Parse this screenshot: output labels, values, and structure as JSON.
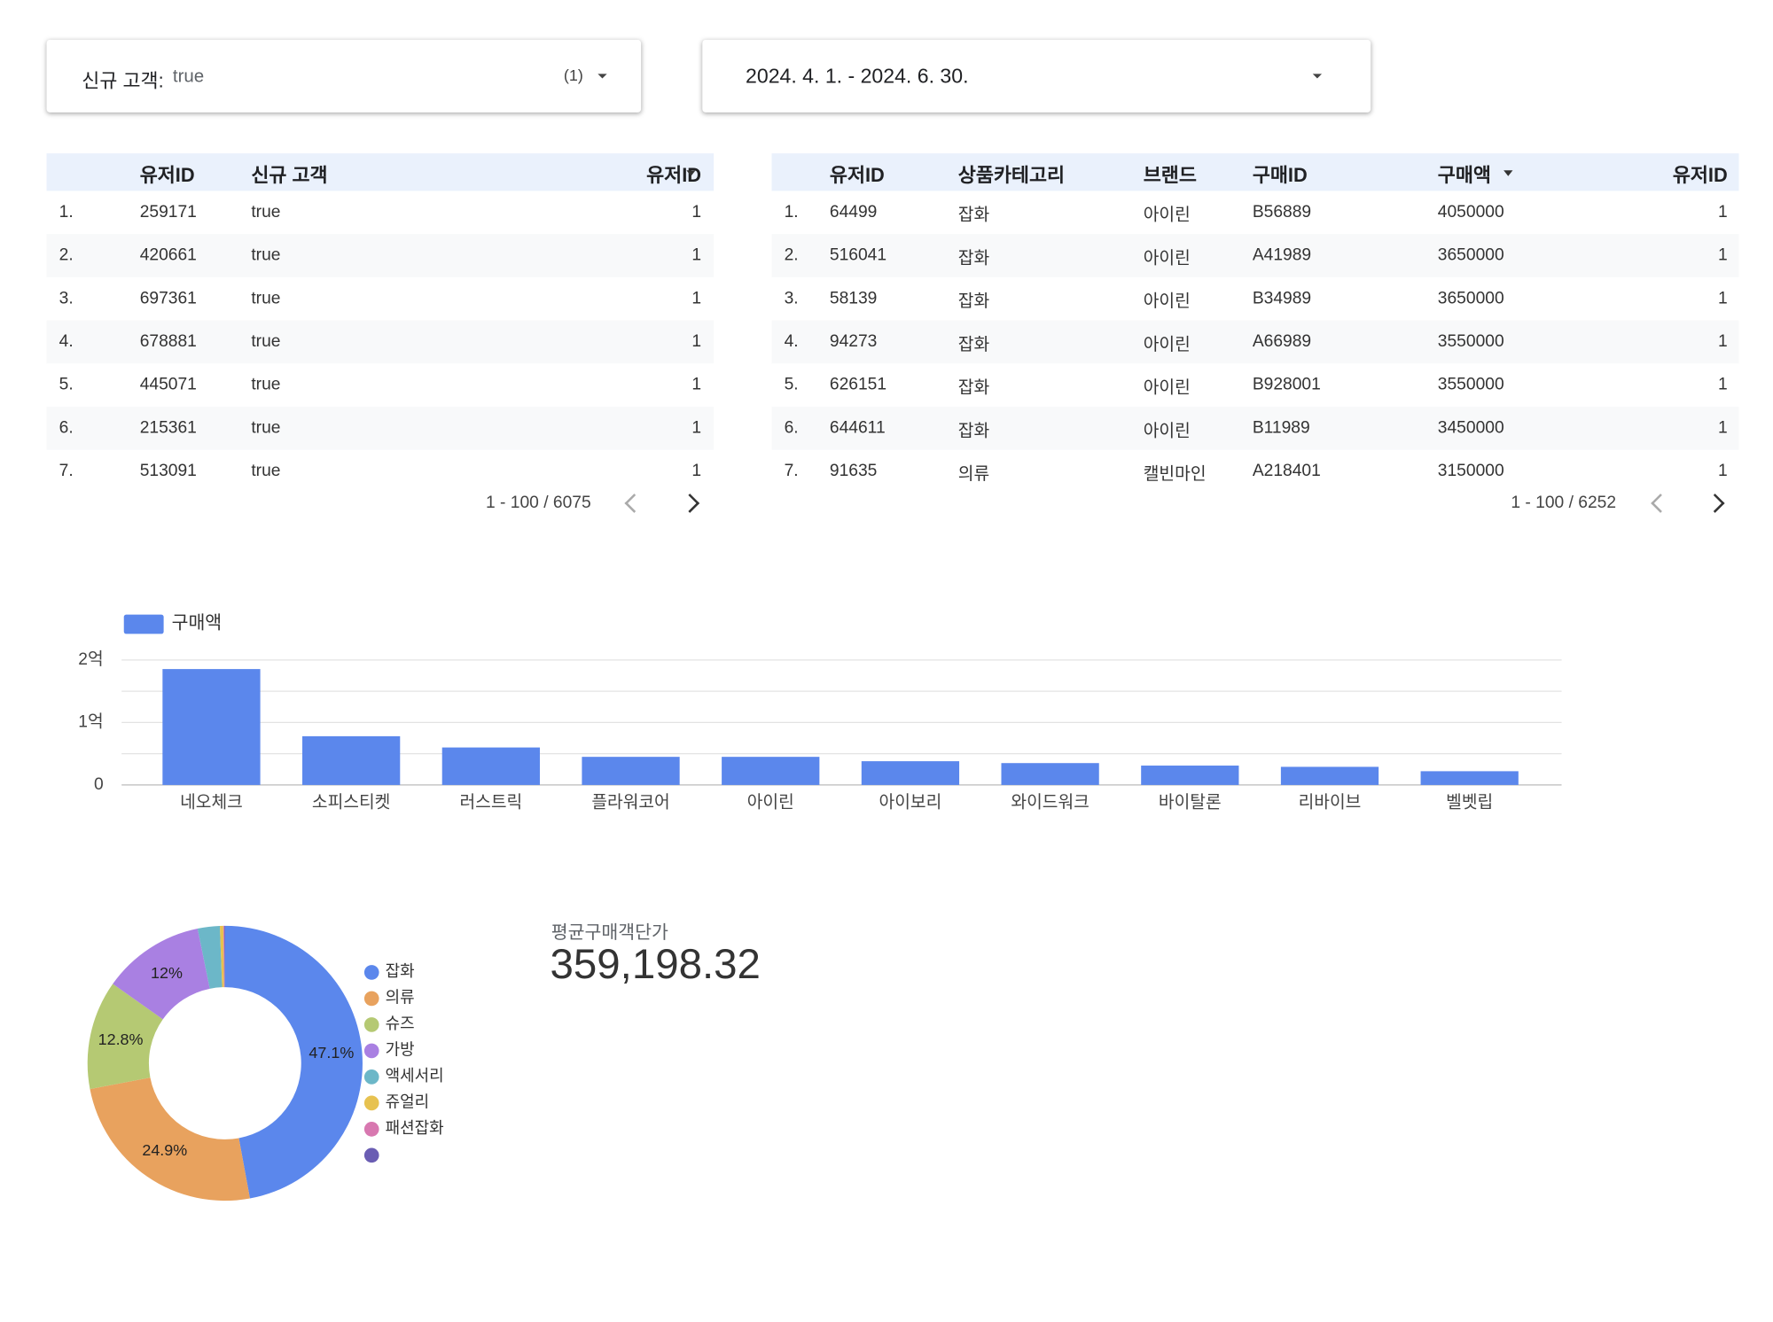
{
  "filters": [
    {
      "label": "신규 고객:",
      "value": "true",
      "count": "(1)"
    },
    {
      "label": "2024. 4. 1. - 2024. 6. 30."
    }
  ],
  "tables": [
    {
      "headers": [
        "유저ID",
        "신규 고객",
        "유저ID"
      ],
      "rows": [
        [
          "1.",
          "259171",
          "true",
          "1"
        ],
        [
          "2.",
          "420661",
          "true",
          "1"
        ],
        [
          "3.",
          "697361",
          "true",
          "1"
        ],
        [
          "4.",
          "678881",
          "true",
          "1"
        ],
        [
          "5.",
          "445071",
          "true",
          "1"
        ],
        [
          "6.",
          "215361",
          "true",
          "1"
        ],
        [
          "7.",
          "513091",
          "true",
          "1"
        ]
      ],
      "pagination": "1 - 100 / 6075"
    },
    {
      "headers": [
        "유저ID",
        "상품카테고리",
        "브랜드",
        "구매ID",
        "구매액",
        "유저ID"
      ],
      "rows": [
        [
          "1.",
          "64499",
          "잡화",
          "아이린",
          "B56889",
          "4050000",
          "1"
        ],
        [
          "2.",
          "516041",
          "잡화",
          "아이린",
          "A41989",
          "3650000",
          "1"
        ],
        [
          "3.",
          "58139",
          "잡화",
          "아이린",
          "B34989",
          "3650000",
          "1"
        ],
        [
          "4.",
          "94273",
          "잡화",
          "아이린",
          "A66989",
          "3550000",
          "1"
        ],
        [
          "5.",
          "626151",
          "잡화",
          "아이린",
          "B928001",
          "3550000",
          "1"
        ],
        [
          "6.",
          "644611",
          "잡화",
          "아이린",
          "B11989",
          "3450000",
          "1"
        ],
        [
          "7.",
          "91635",
          "의류",
          "캘빈마인",
          "A218401",
          "3150000",
          "1"
        ]
      ],
      "pagination": "1 - 100 / 6252"
    }
  ],
  "chart_data": [
    {
      "type": "bar",
      "categories": [
        "네오체크",
        "소피스티켓",
        "러스트릭",
        "플라워코어",
        "아이린",
        "아이보리",
        "와이드워크",
        "바이탈론",
        "리바이브",
        "벨벳립"
      ],
      "series": [
        {
          "name": "구매액",
          "color": "#5b87ec",
          "values": [
            185500000,
            78000000,
            60000000,
            45000000,
            45000000,
            38000000,
            35000000,
            31000000,
            29000000,
            22000000
          ]
        }
      ],
      "ylim": [
        0,
        200000000
      ],
      "yticks": [
        0,
        {
          "value": 100000000,
          "label": "1억"
        },
        {
          "value": 200000000,
          "label": "2억"
        }
      ],
      "minor_gridlines": [
        50000000,
        150000000
      ],
      "grid": true,
      "legend": "top-left"
    },
    {
      "type": "donut",
      "categories": [
        "잡화",
        "의류",
        "슈즈",
        "가방",
        "액세서리",
        "쥬얼리",
        "패션잡화",
        null
      ],
      "values": [
        47.1,
        24.9,
        12.8,
        12,
        2.6,
        0.4,
        0.1,
        0.1
      ],
      "value_labels": [
        "47.1%",
        "24.9%",
        "12.8%",
        "12%",
        null,
        null,
        null,
        null
      ],
      "colors": [
        "#5b87ec",
        "#e8a25e",
        "#b5c973",
        "#a980e2",
        "#6cb7c8",
        "#e7c250",
        "#d878b0",
        "#6a5db3"
      ],
      "legend": "right"
    }
  ],
  "scorecard": {
    "label": "평균구매객단가",
    "value": "359,198.32"
  }
}
